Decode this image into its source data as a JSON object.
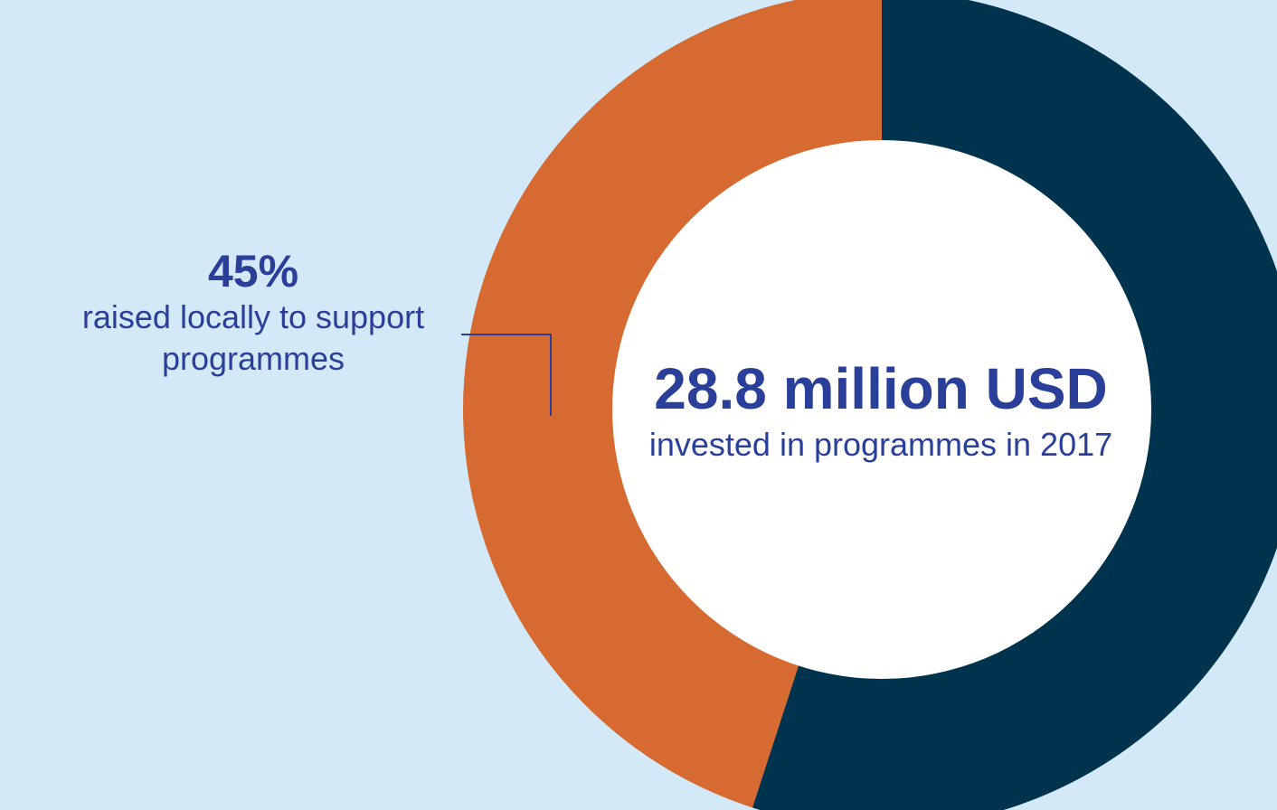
{
  "chart_data": {
    "type": "pie",
    "variant": "donut",
    "slices": [
      {
        "value": 55,
        "color": "#00334e"
      },
      {
        "value": 45,
        "color": "#d66a30"
      }
    ],
    "center_title": "28.8 million USD",
    "center_subtitle": "invested in programmes in 2017",
    "annotation": {
      "value": "45%",
      "text": "raised locally to support programmes"
    },
    "leader_line_color": "#2a3f9a"
  }
}
